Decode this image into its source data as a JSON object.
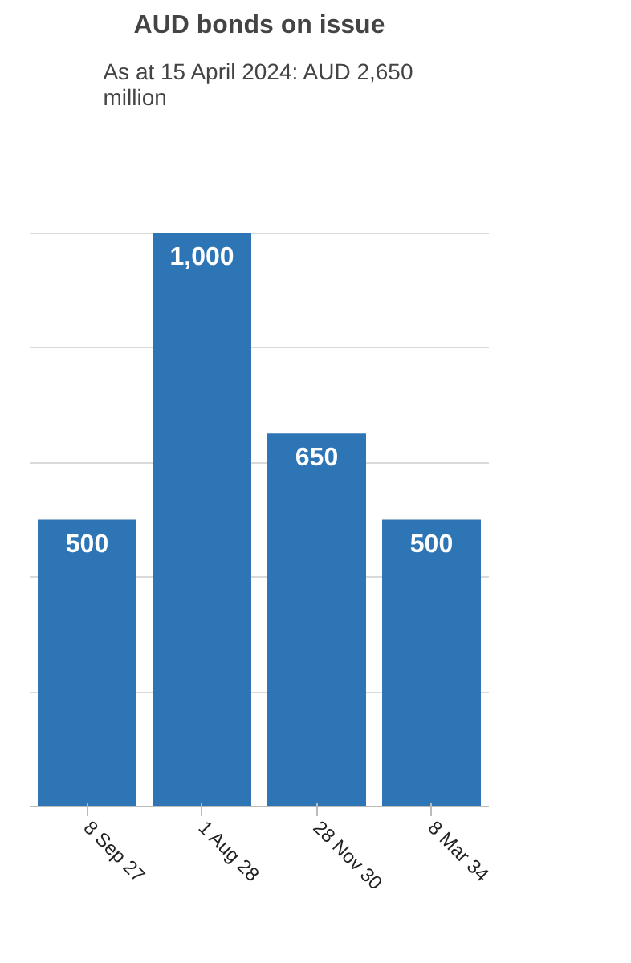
{
  "chart_data": {
    "type": "bar",
    "title": "AUD bonds on issue",
    "subtitle": "As at 15 April 2024: AUD 2,650 million",
    "categories": [
      "8 Sep 27",
      "1 Aug 28",
      "28 Nov 30",
      "8 Mar 34"
    ],
    "values": [
      500,
      1000,
      650,
      500
    ],
    "color": "#2e75b6",
    "value_labels": [
      "500",
      "1,000",
      "650",
      "500"
    ],
    "tick_labels": "x",
    "grid": "y"
  }
}
